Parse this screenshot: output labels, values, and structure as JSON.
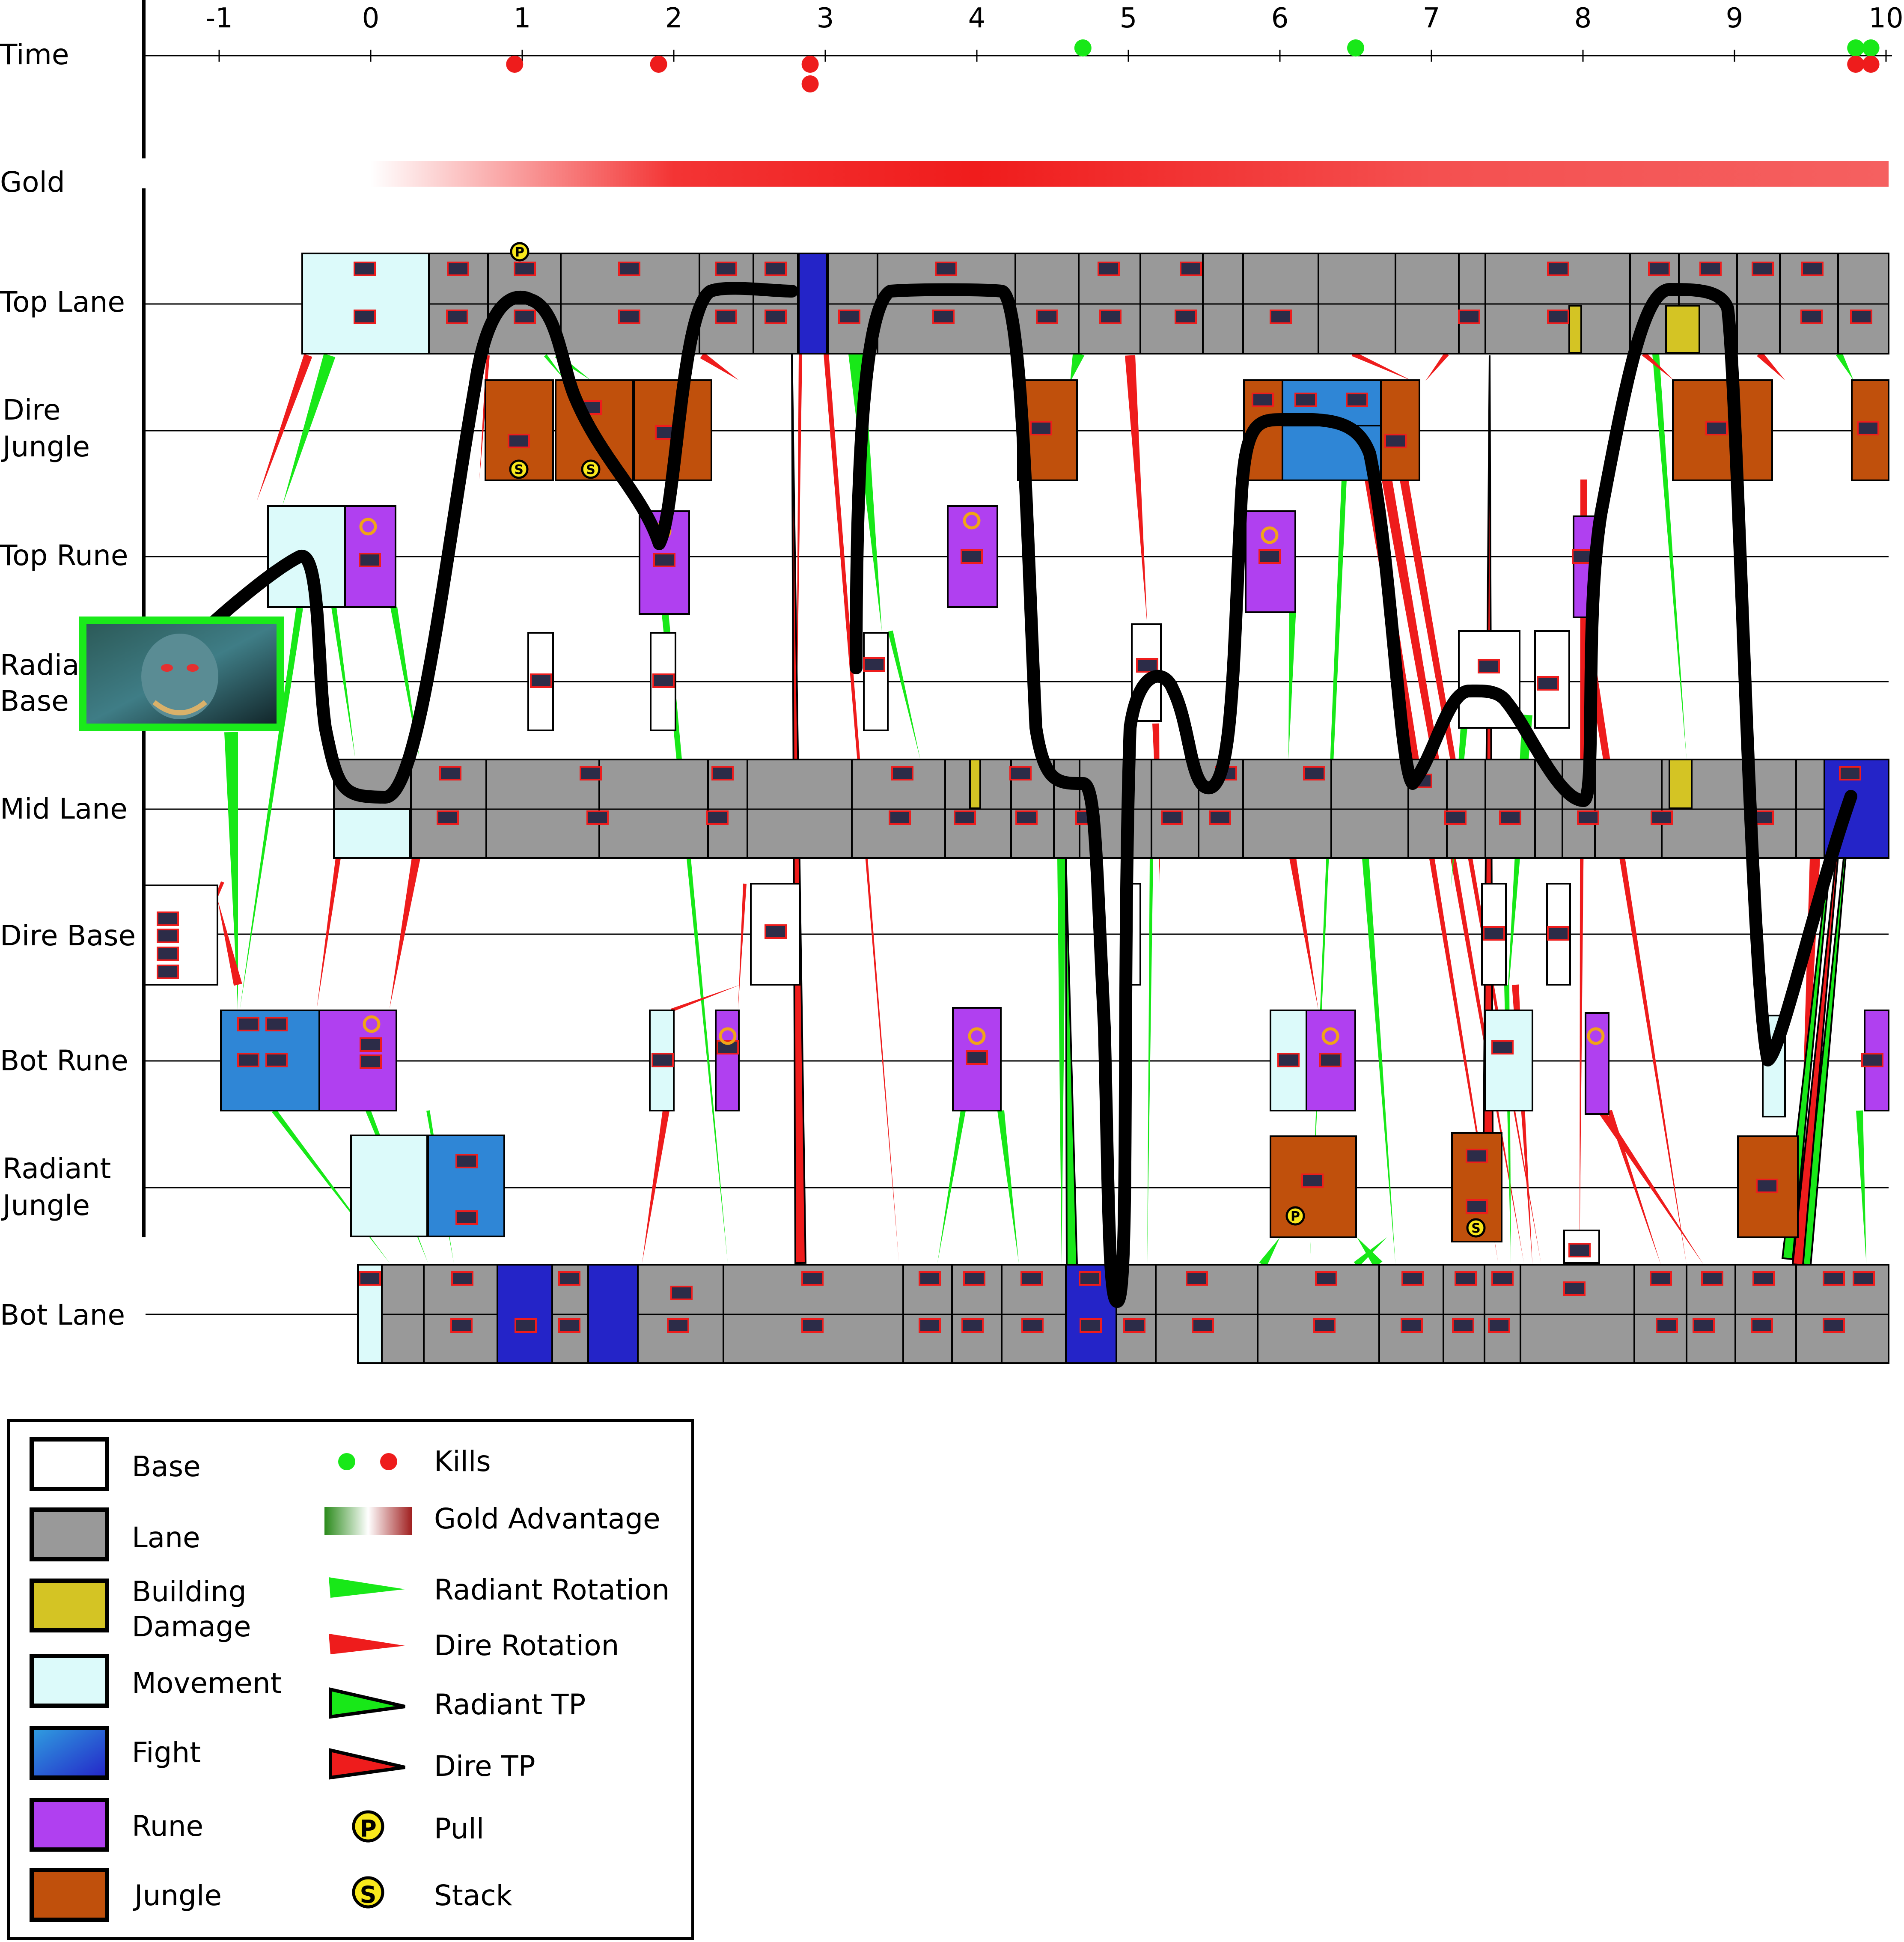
{
  "row_labels": {
    "time": "Time",
    "gold": "Gold",
    "top_lane": "Top Lane",
    "dire_jungle_1": "Dire",
    "dire_jungle_2": "Jungle",
    "top_rune": "Top Rune",
    "radiant_base_1": "Radia",
    "radiant_base_2": "Base",
    "mid_lane": "Mid Lane",
    "dire_base": "Dire Base",
    "bot_rune": "Bot Rune",
    "radiant_jungle_1": "Radiant",
    "radiant_jungle_2": "Jungle",
    "bot_lane": "Bot Lane"
  },
  "time_axis": {
    "ticks": [
      "-1",
      "0",
      "1",
      "2",
      "3",
      "4",
      "5",
      "6",
      "7",
      "8",
      "9",
      "10"
    ],
    "range": [
      -1.5,
      10
    ]
  },
  "kills": {
    "radiant": [
      4.7,
      6.5,
      9.8,
      9.9
    ],
    "dire": [
      0.95,
      1.9,
      2.9,
      2.9,
      9.8,
      9.9
    ]
  },
  "colors": {
    "base": "#ffffff",
    "lane": "#999999",
    "building_damage": "#d4c424",
    "movement": "#dcfafa",
    "fight_light": "#2f86d6",
    "fight_dark": "#2424c8",
    "rune": "#b040f0",
    "jungle": "#c0500c",
    "radiant": "#18e818",
    "dire": "#ee1c1c",
    "path": "#000000"
  },
  "legend": {
    "base": "Base",
    "lane": "Lane",
    "building_1": "Building",
    "building_2": "Damage",
    "movement": "Movement",
    "fight": "Fight",
    "rune": "Rune",
    "jungle": "Jungle",
    "kills": "Kills",
    "gold_advantage": "Gold Advantage",
    "radiant_rotation": "Radiant Rotation",
    "dire_rotation": "Dire Rotation",
    "radiant_tp": "Radiant TP",
    "dire_tp": "Dire TP",
    "pull": "Pull",
    "stack": "Stack"
  },
  "marker_letters": {
    "pull": "P",
    "stack": "S"
  },
  "icons": {
    "hero_portrait": "hero-portrait-icon",
    "rune": "rune-icon",
    "pull": "pull-icon",
    "stack": "stack-icon"
  }
}
